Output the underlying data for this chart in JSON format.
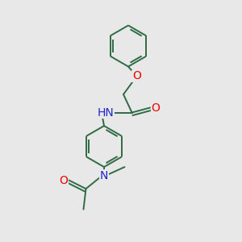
{
  "background_color": "#e8e8e8",
  "bond_color": "#2f6b45",
  "bond_width": 1.4,
  "atom_colors": {
    "O": "#ee0000",
    "N": "#2222cc",
    "C": "#2f6b45"
  },
  "font_size": 10,
  "font_size_small": 9
}
